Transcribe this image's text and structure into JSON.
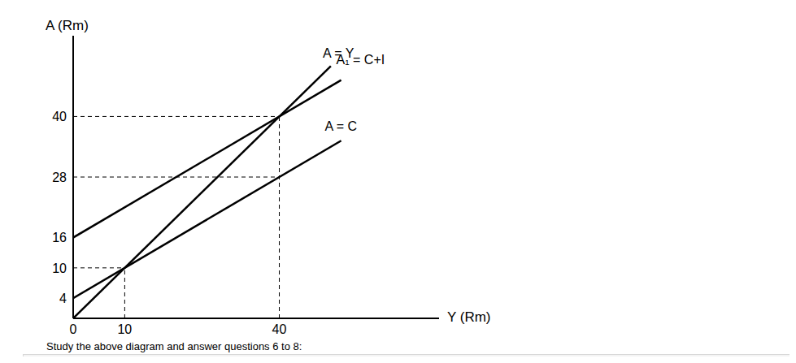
{
  "chart_data": {
    "type": "line",
    "x_label": "Y (Rm)",
    "y_label": "A (Rm)",
    "caption": "Study the above diagram and answer questions 6 to 8:",
    "xlim": [
      0,
      71
    ],
    "ylim": [
      0,
      56
    ],
    "xticks": [
      0,
      10,
      40
    ],
    "yticks": [
      4,
      10,
      16,
      28,
      40
    ],
    "series": [
      {
        "name": "A = Y",
        "color": "#000000",
        "x": [
          0,
          50
        ],
        "values": [
          0,
          50
        ]
      },
      {
        "name": "A₁ = C+I",
        "color": "#000000",
        "x": [
          0,
          52
        ],
        "values": [
          16,
          47.2
        ]
      },
      {
        "name": "A = C",
        "color": "#000000",
        "x": [
          0,
          52
        ],
        "values": [
          4,
          35.2
        ]
      }
    ],
    "guides": [
      [
        [
          0,
          40
        ],
        [
          40,
          40
        ]
      ],
      [
        [
          40,
          0
        ],
        [
          40,
          40
        ]
      ],
      [
        [
          0,
          28
        ],
        [
          40,
          28
        ]
      ],
      [
        [
          0,
          10
        ],
        [
          10,
          10
        ]
      ],
      [
        [
          10,
          0
        ],
        [
          10,
          10
        ]
      ]
    ],
    "line_style": "dashed"
  }
}
